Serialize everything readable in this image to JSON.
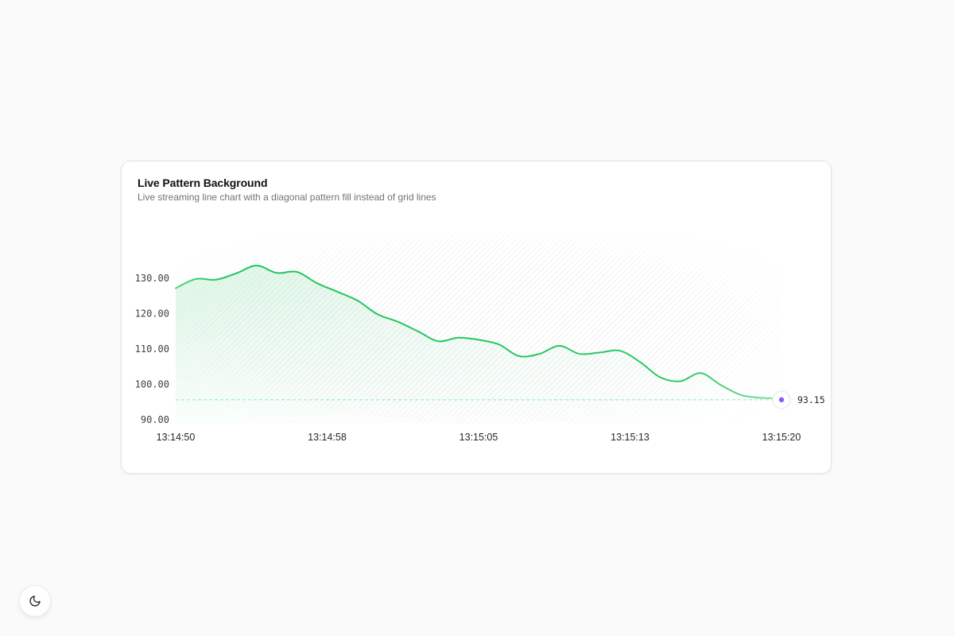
{
  "card": {
    "title": "Live Pattern Background",
    "subtitle": "Live streaming line chart with a diagonal pattern fill instead of grid lines"
  },
  "chart_data": {
    "type": "line",
    "title": "Live Pattern Background",
    "subtitle": "Live streaming line chart with a diagonal pattern fill instead of grid lines",
    "xlabel": "",
    "ylabel": "",
    "x_tick_labels": [
      "13:14:50",
      "13:14:58",
      "13:15:05",
      "13:15:13",
      "13:15:20"
    ],
    "y_tick_labels": [
      "130.00",
      "120.00",
      "110.00",
      "100.00",
      "90.00"
    ],
    "y_ticks": [
      130,
      120,
      110,
      100,
      90
    ],
    "ylim": [
      90,
      135
    ],
    "x_range_seconds": [
      0,
      30
    ],
    "x": [
      0,
      1,
      2,
      3,
      4,
      5,
      6,
      7,
      8,
      9,
      10,
      11,
      12,
      13,
      14,
      15,
      16,
      17,
      18,
      19,
      20,
      21,
      22,
      23,
      24,
      25,
      26,
      27,
      28,
      29,
      30
    ],
    "values": [
      127.2,
      129.8,
      129.6,
      131.4,
      133.6,
      131.5,
      131.8,
      128.6,
      126.2,
      123.7,
      119.8,
      117.7,
      115.0,
      112.2,
      113.2,
      112.6,
      111.3,
      108.0,
      108.6,
      110.9,
      108.6,
      109.0,
      109.5,
      106.3,
      102.0,
      100.9,
      103.2,
      99.8,
      97.0,
      96.2,
      96.1
    ],
    "current_value": 93.15,
    "current_value_label": "93.15",
    "grid": false,
    "fill": "diagonal-pattern",
    "colors": {
      "line": "#22c55e",
      "dot": "#8b5cf6",
      "pattern": "#d4d4d8"
    }
  },
  "theme_toggle": {
    "icon": "moon-icon"
  }
}
